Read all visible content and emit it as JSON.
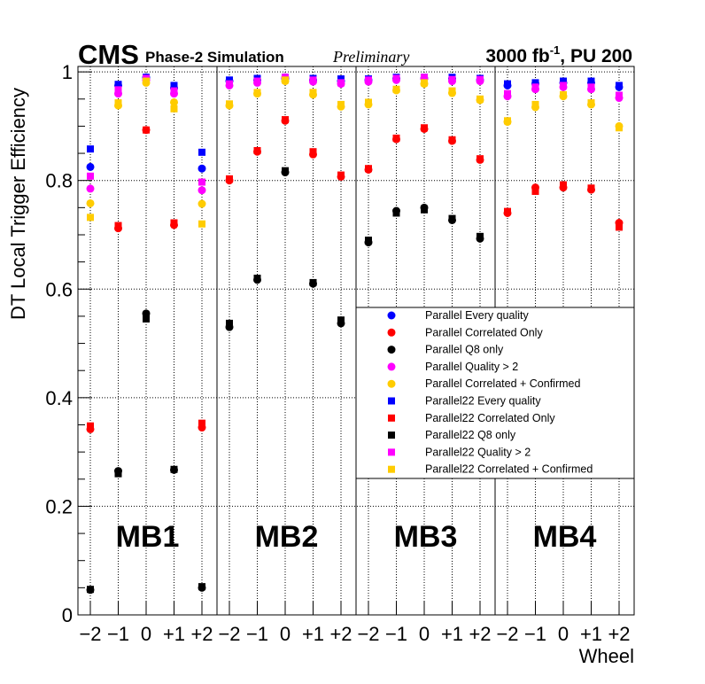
{
  "chart_data": {
    "type": "scatter",
    "header": {
      "experiment": "CMS",
      "subtitle": "Phase-2 Simulation",
      "status": "Preliminary",
      "lumi_value": "3000 fb",
      "lumi_exp": "-1",
      "lumi_suffix": ", PU 200"
    },
    "xlabel": "Wheel",
    "ylabel": "DT Local Trigger Efficiency",
    "ylim": [
      0,
      1.01
    ],
    "y_ticks": [
      "0",
      "0.2",
      "0.4",
      "0.6",
      "0.8",
      "1"
    ],
    "y_tick_values": [
      0,
      0.2,
      0.4,
      0.6,
      0.8,
      1.0
    ],
    "grid": true,
    "stations": [
      "MB1",
      "MB2",
      "MB3",
      "MB4"
    ],
    "wheels": [
      "−2",
      "−1",
      "0",
      "+1",
      "+2"
    ],
    "legend_position": "right-middle",
    "series": [
      {
        "name": "Parallel Every quality",
        "marker": "circle",
        "color": "#0000ff",
        "values": [
          [
            0.825,
            0.975,
            0.99,
            0.97,
            0.822
          ],
          [
            0.983,
            0.985,
            0.988,
            0.985,
            0.983
          ],
          [
            0.985,
            0.988,
            0.988,
            0.988,
            0.985
          ],
          [
            0.975,
            0.978,
            0.98,
            0.98,
            0.972
          ]
        ]
      },
      {
        "name": "Parallel Correlated Only",
        "marker": "circle",
        "color": "#ff0000",
        "values": [
          [
            0.342,
            0.712,
            0.893,
            0.718,
            0.345
          ],
          [
            0.8,
            0.853,
            0.91,
            0.848,
            0.807
          ],
          [
            0.82,
            0.876,
            0.895,
            0.873,
            0.838
          ],
          [
            0.74,
            0.787,
            0.787,
            0.783,
            0.722
          ]
        ]
      },
      {
        "name": "Parallel Q8 only",
        "marker": "circle",
        "color": "#000000",
        "values": [
          [
            0.046,
            0.265,
            0.555,
            0.267,
            0.05
          ],
          [
            0.53,
            0.617,
            0.815,
            0.61,
            0.537
          ],
          [
            0.686,
            0.744,
            0.75,
            0.727,
            0.693
          ],
          []
        ]
      },
      {
        "name": "Parallel Quality > 2",
        "marker": "circle",
        "color": "#ff00ff",
        "values": [
          [
            0.785,
            0.96,
            0.985,
            0.96,
            0.782
          ],
          [
            0.975,
            0.98,
            0.99,
            0.982,
            0.978
          ],
          [
            0.982,
            0.985,
            0.988,
            0.983,
            0.983
          ],
          [
            0.955,
            0.968,
            0.972,
            0.968,
            0.952
          ]
        ]
      },
      {
        "name": "Parallel Correlated + Confirmed",
        "marker": "circle",
        "color": "#ffcc00",
        "values": [
          [
            0.758,
            0.938,
            0.98,
            0.944,
            0.757
          ],
          [
            0.938,
            0.96,
            0.983,
            0.958,
            0.936
          ],
          [
            0.94,
            0.966,
            0.978,
            0.961,
            0.948
          ],
          [
            0.908,
            0.935,
            0.955,
            0.94,
            0.9
          ]
        ]
      },
      {
        "name": "Parallel22 Every quality",
        "marker": "square",
        "color": "#0000ff",
        "values": [
          [
            0.858,
            0.977,
            0.99,
            0.975,
            0.852
          ],
          [
            0.985,
            0.988,
            0.99,
            0.988,
            0.987
          ],
          [
            0.987,
            0.99,
            0.99,
            0.99,
            0.988
          ],
          [
            0.978,
            0.98,
            0.983,
            0.983,
            0.975
          ]
        ]
      },
      {
        "name": "Parallel22 Correlated Only",
        "marker": "square",
        "color": "#ff0000",
        "values": [
          [
            0.348,
            0.717,
            0.893,
            0.722,
            0.353
          ],
          [
            0.803,
            0.855,
            0.912,
            0.853,
            0.81
          ],
          [
            0.822,
            0.878,
            0.897,
            0.875,
            0.84
          ],
          [
            0.743,
            0.78,
            0.792,
            0.786,
            0.714
          ]
        ]
      },
      {
        "name": "Parallel22 Q8 only",
        "marker": "square",
        "color": "#000000",
        "values": [
          [
            0.047,
            0.26,
            0.545,
            0.268,
            0.052
          ],
          [
            0.537,
            0.62,
            0.818,
            0.612,
            0.543
          ],
          [
            0.69,
            0.74,
            0.746,
            0.73,
            0.697
          ],
          []
        ]
      },
      {
        "name": "Parallel22 Quality > 2",
        "marker": "square",
        "color": "#ff00ff",
        "values": [
          [
            0.808,
            0.967,
            0.988,
            0.965,
            0.797
          ],
          [
            0.978,
            0.983,
            0.99,
            0.985,
            0.98
          ],
          [
            0.985,
            0.988,
            0.99,
            0.986,
            0.986
          ],
          [
            0.96,
            0.972,
            0.975,
            0.972,
            0.957
          ]
        ]
      },
      {
        "name": "Parallel22 Correlated + Confirmed",
        "marker": "square",
        "color": "#ffcc00",
        "values": [
          [
            0.732,
            0.943,
            0.983,
            0.932,
            0.72
          ],
          [
            0.941,
            0.962,
            0.985,
            0.962,
            0.94
          ],
          [
            0.944,
            0.968,
            0.98,
            0.965,
            0.95
          ],
          [
            0.91,
            0.94,
            0.958,
            0.943,
            0.897
          ]
        ]
      }
    ]
  }
}
